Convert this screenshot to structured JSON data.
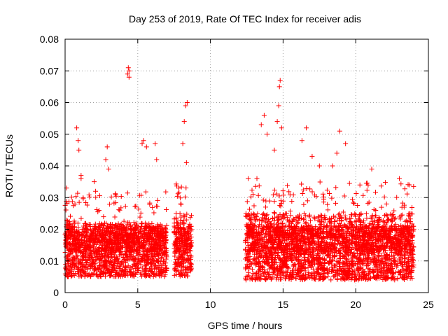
{
  "chart_data": {
    "type": "scatter",
    "title": "Day 253 of 2019, Rate Of TEC Index for receiver adis",
    "xlabel": "GPS time / hours",
    "ylabel": "ROTI / TECUs",
    "xlim": [
      0,
      25
    ],
    "ylim": [
      0,
      0.08
    ],
    "x_ticks": [
      0,
      5,
      10,
      15,
      20,
      25
    ],
    "x_tick_labels": [
      "0",
      "5",
      "10",
      "15",
      "20",
      "25"
    ],
    "y_ticks": [
      0,
      0.01,
      0.02,
      0.03,
      0.04,
      0.05,
      0.06,
      0.07,
      0.08
    ],
    "y_tick_labels": [
      "0",
      "0.01",
      "0.02",
      "0.03",
      "0.04",
      "0.05",
      "0.06",
      "0.07",
      "0.08"
    ],
    "grid": true,
    "series": [
      {
        "name": "ROTI",
        "marker": "plus",
        "color": "#ff0000",
        "data_segments": [
          {
            "x_start": 0.0,
            "x_end": 7.0,
            "y_low": 0.003,
            "y_typical": 0.013,
            "y_high": 0.032,
            "note": "dense band"
          },
          {
            "x_start": 7.5,
            "x_end": 8.7,
            "y_low": 0.003,
            "y_typical": 0.013,
            "y_high": 0.035,
            "note": "dense band"
          },
          {
            "x_start": 12.4,
            "x_end": 24.0,
            "y_low": 0.002,
            "y_typical": 0.013,
            "y_high": 0.035,
            "note": "dense band"
          }
        ],
        "x": [
          0.1,
          0.8,
          0.9,
          0.95,
          1.1,
          1.1,
          2.0,
          2.1,
          2.8,
          2.9,
          3.0,
          4.3,
          4.35,
          4.4,
          4.4,
          5.3,
          5.4,
          5.6,
          6.2,
          6.3,
          8.1,
          8.2,
          8.3,
          8.4,
          8.35,
          12.6,
          13.2,
          13.5,
          13.7,
          13.9,
          14.4,
          14.6,
          14.7,
          14.75,
          14.8,
          14.9,
          16.3,
          16.6,
          17.0,
          17.5,
          18.4,
          18.7,
          18.9,
          19.3,
          21.1,
          23.0,
          23.7
        ],
        "y": [
          0.033,
          0.052,
          0.048,
          0.045,
          0.037,
          0.036,
          0.035,
          0.032,
          0.042,
          0.046,
          0.039,
          0.069,
          0.071,
          0.07,
          0.068,
          0.047,
          0.048,
          0.046,
          0.047,
          0.042,
          0.047,
          0.054,
          0.059,
          0.06,
          0.041,
          0.036,
          0.036,
          0.053,
          0.056,
          0.05,
          0.045,
          0.054,
          0.059,
          0.065,
          0.067,
          0.052,
          0.048,
          0.052,
          0.043,
          0.04,
          0.04,
          0.044,
          0.051,
          0.047,
          0.039,
          0.036,
          0.034
        ]
      }
    ]
  }
}
